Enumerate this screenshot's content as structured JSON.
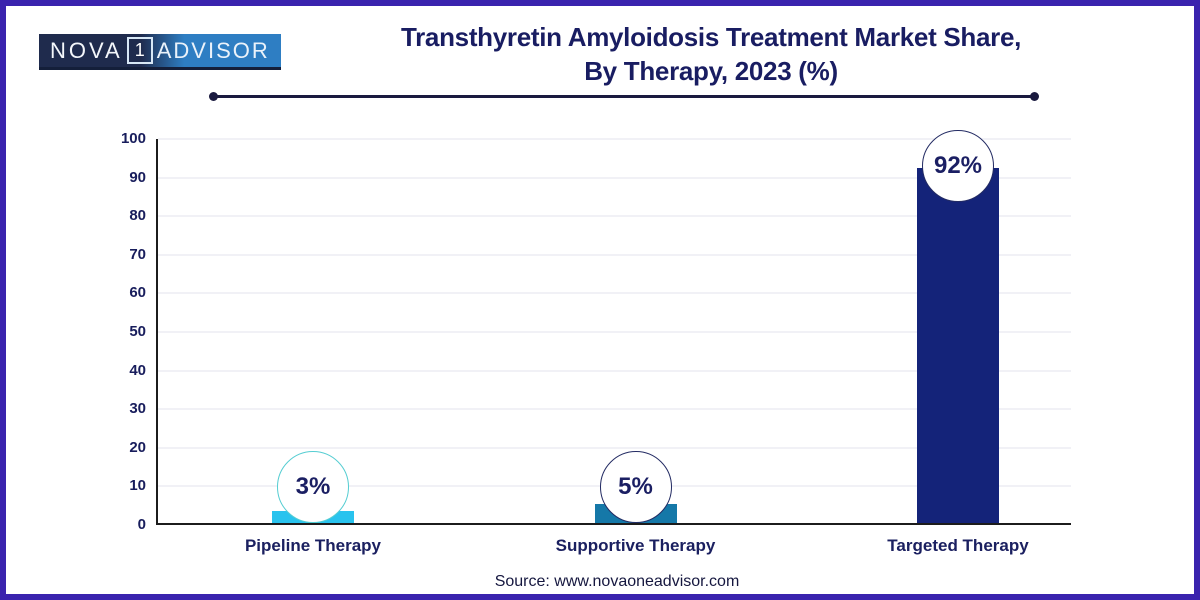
{
  "brand": {
    "logo_part1": "NOVA",
    "logo_number": "1",
    "logo_part2": "ADVISOR"
  },
  "header": {
    "title_line1": "Transthyretin Amyloidosis Treatment Market Share,",
    "title_line2": "By Therapy, 2023 (%)"
  },
  "chart_data": {
    "type": "bar",
    "title": "Transthyretin Amyloidosis Treatment Market Share, By Therapy, 2023 (%)",
    "categories": [
      "Pipeline Therapy",
      "Supportive Therapy",
      "Targeted Therapy"
    ],
    "values": [
      3,
      5,
      92
    ],
    "value_labels": [
      "3%",
      "5%",
      "92%"
    ],
    "bar_colors": [
      "#29c3ee",
      "#1578a8",
      "#142379"
    ],
    "badge_border_colors": [
      "#55cdd2",
      "#232b63",
      "#232b63"
    ],
    "ylim": [
      0,
      100
    ],
    "yticks": [
      0,
      10,
      20,
      30,
      40,
      50,
      60,
      70,
      80,
      90,
      100
    ],
    "grid": true,
    "legend": false,
    "xlabel": "",
    "ylabel": ""
  },
  "footer": {
    "source": "Source: www.novaoneadvisor.com"
  },
  "colors": {
    "frame_border": "#3a23ae",
    "title_text": "#191d62",
    "axis_line": "#1c1c1c",
    "gridline": "#f1f1f6",
    "tick_text": "#181d5c",
    "badge_text": "#1b1f63",
    "rule_color": "#1a1a3f",
    "logo_dark": "#1f2b4d",
    "logo_blue": "#2e7ec3"
  }
}
